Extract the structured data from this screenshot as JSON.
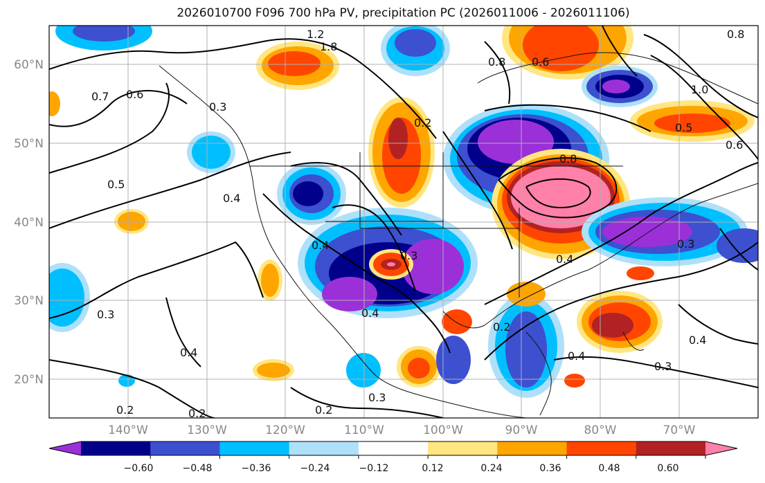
{
  "title": "2026010700 F096 700 hPa PV, precipitation PC (2026011006 - 2026011106)",
  "map": {
    "lat_labels": [
      "60°N",
      "50°N",
      "40°N",
      "30°N",
      "20°N"
    ],
    "lon_labels": [
      "140°W",
      "130°W",
      "120°W",
      "110°W",
      "100°W",
      "90°W",
      "80°W",
      "70°W"
    ],
    "contour_labels": [
      "1.2",
      "1.8",
      "0.8",
      "0.6",
      "0.7",
      "0.6",
      "0.5",
      "0.4",
      "0.4",
      "0.3",
      "0.3",
      "0.4",
      "0.2",
      "0.2",
      "0.2",
      "0.3",
      "0.2",
      "0.4",
      "0.8",
      "0.4",
      "0.3",
      "0.4",
      "0.6",
      "0.8",
      "0.5",
      "1.0",
      "0.3",
      "0.2",
      "0.4",
      "0.3"
    ],
    "gridline_color": "#b0b0b0"
  },
  "colorbar": {
    "tick_labels": [
      "−0.60",
      "−0.48",
      "−0.36",
      "−0.24",
      "−0.12",
      "0.12",
      "0.24",
      "0.36",
      "0.48",
      "0.60"
    ],
    "colors": [
      "#9b30d9",
      "#00008b",
      "#3c50d0",
      "#00bfff",
      "#aee0fa",
      "#ffffff",
      "#ffe680",
      "#ffa500",
      "#ff4500",
      "#b22222",
      "#ff80a8"
    ]
  }
}
